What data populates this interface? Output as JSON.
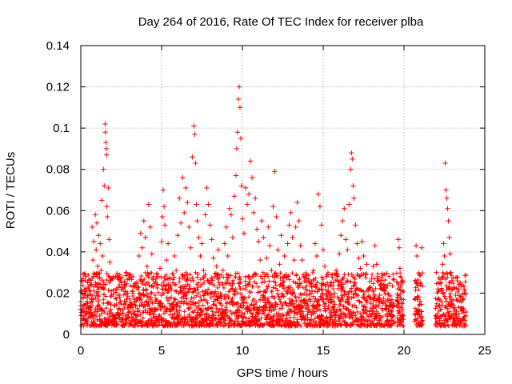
{
  "chart_data": {
    "type": "scatter",
    "title": "Day 264 of 2016, Rate Of TEC Index for receiver plba",
    "xlabel": "GPS time / hours",
    "ylabel": "ROTI / TECUs",
    "xlim": [
      0,
      25
    ],
    "ylim": [
      0,
      0.14
    ],
    "grid": true,
    "marker": "+",
    "series_color": "#ff0000",
    "x_ticks": [
      {
        "value": 0,
        "label": "0"
      },
      {
        "value": 5,
        "label": "5"
      },
      {
        "value": 10,
        "label": "10"
      },
      {
        "value": 15,
        "label": "15"
      },
      {
        "value": 20,
        "label": "20"
      },
      {
        "value": 25,
        "label": "25"
      }
    ],
    "y_ticks": [
      {
        "value": 0,
        "label": "0"
      },
      {
        "value": 0.02,
        "label": "0.02"
      },
      {
        "value": 0.04,
        "label": "0.04"
      },
      {
        "value": 0.06,
        "label": "0.06"
      },
      {
        "value": 0.08,
        "label": "0.08"
      },
      {
        "value": 0.1,
        "label": "0.1"
      },
      {
        "value": 0.12,
        "label": "0.12"
      },
      {
        "value": 0.14,
        "label": "0.14"
      }
    ],
    "series": [
      {
        "name": "ROTI",
        "points": [
          [
            0.0,
            0.012
          ],
          [
            0.05,
            0.026
          ],
          [
            0.1,
            0.009
          ],
          [
            0.15,
            0.018
          ],
          [
            0.2,
            0.014
          ],
          [
            0.25,
            0.021
          ],
          [
            0.3,
            0.028
          ],
          [
            0.35,
            0.011
          ],
          [
            0.4,
            0.016
          ],
          [
            0.45,
            0.008
          ],
          [
            0.5,
            0.019
          ],
          [
            0.55,
            0.013
          ],
          [
            0.6,
            0.024
          ],
          [
            0.65,
            0.017
          ],
          [
            0.7,
            0.052
          ],
          [
            0.75,
            0.036
          ],
          [
            0.8,
            0.045
          ],
          [
            0.85,
            0.029
          ],
          [
            0.9,
            0.058
          ],
          [
            0.95,
            0.041
          ],
          [
            1.0,
            0.054
          ],
          [
            1.05,
            0.033
          ],
          [
            1.1,
            0.048
          ],
          [
            1.15,
            0.027
          ],
          [
            1.2,
            0.044
          ],
          [
            1.25,
            0.031
          ],
          [
            1.3,
            0.065
          ],
          [
            1.35,
            0.038
          ],
          [
            1.4,
            0.08
          ],
          [
            1.45,
            0.072
          ],
          [
            1.5,
            0.102
          ],
          [
            1.52,
            0.098
          ],
          [
            1.55,
            0.093
          ],
          [
            1.58,
            0.09
          ],
          [
            1.6,
            0.087
          ],
          [
            1.62,
            0.062
          ],
          [
            1.65,
            0.057
          ],
          [
            1.7,
            0.071
          ],
          [
            1.75,
            0.046
          ],
          [
            1.8,
            0.035
          ],
          [
            1.85,
            0.026
          ],
          [
            1.9,
            0.019
          ],
          [
            2.0,
            0.028
          ],
          [
            2.1,
            0.014
          ],
          [
            2.2,
            0.022
          ],
          [
            2.3,
            0.01
          ],
          [
            2.4,
            0.018
          ],
          [
            2.5,
            0.025
          ],
          [
            2.6,
            0.012
          ],
          [
            2.7,
            0.016
          ],
          [
            2.8,
            0.03
          ],
          [
            2.9,
            0.02
          ],
          [
            3.0,
            0.027
          ],
          [
            3.1,
            0.013
          ],
          [
            3.2,
            0.021
          ],
          [
            3.3,
            0.017
          ],
          [
            3.4,
            0.024
          ],
          [
            3.5,
            0.011
          ],
          [
            3.6,
            0.038
          ],
          [
            3.7,
            0.049
          ],
          [
            3.8,
            0.042
          ],
          [
            3.9,
            0.055
          ],
          [
            4.0,
            0.047
          ],
          [
            4.1,
            0.033
          ],
          [
            4.2,
            0.063
          ],
          [
            4.3,
            0.052
          ],
          [
            4.4,
            0.039
          ],
          [
            4.5,
            0.028
          ],
          [
            4.6,
            0.019
          ],
          [
            4.7,
            0.024
          ],
          [
            4.8,
            0.015
          ],
          [
            4.9,
            0.032
          ],
          [
            5.0,
            0.045
          ],
          [
            5.05,
            0.057
          ],
          [
            5.1,
            0.07
          ],
          [
            5.15,
            0.062
          ],
          [
            5.2,
            0.053
          ],
          [
            5.3,
            0.036
          ],
          [
            5.4,
            0.044
          ],
          [
            5.5,
            0.027
          ],
          [
            5.6,
            0.018
          ],
          [
            5.7,
            0.025
          ],
          [
            5.8,
            0.038
          ],
          [
            5.9,
            0.031
          ],
          [
            6.0,
            0.048
          ],
          [
            6.1,
            0.066
          ],
          [
            6.2,
            0.054
          ],
          [
            6.3,
            0.076
          ],
          [
            6.4,
            0.059
          ],
          [
            6.5,
            0.071
          ],
          [
            6.6,
            0.064
          ],
          [
            6.7,
            0.052
          ],
          [
            6.8,
            0.042
          ],
          [
            6.9,
            0.086
          ],
          [
            7.0,
            0.101
          ],
          [
            7.05,
            0.097
          ],
          [
            7.1,
            0.083
          ],
          [
            7.15,
            0.063
          ],
          [
            7.2,
            0.055
          ],
          [
            7.3,
            0.047
          ],
          [
            7.4,
            0.038
          ],
          [
            7.5,
            0.044
          ],
          [
            7.6,
            0.031
          ],
          [
            7.7,
            0.058
          ],
          [
            7.8,
            0.071
          ],
          [
            7.9,
            0.063
          ],
          [
            8.0,
            0.053
          ],
          [
            8.1,
            0.046
          ],
          [
            8.2,
            0.037
          ],
          [
            8.3,
            0.028
          ],
          [
            8.4,
            0.033
          ],
          [
            8.5,
            0.041
          ],
          [
            8.6,
            0.024
          ],
          [
            8.7,
            0.019
          ],
          [
            8.8,
            0.031
          ],
          [
            8.9,
            0.044
          ],
          [
            9.0,
            0.052
          ],
          [
            9.1,
            0.038
          ],
          [
            9.2,
            0.061
          ],
          [
            9.3,
            0.058
          ],
          [
            9.4,
            0.047
          ],
          [
            9.5,
            0.067
          ],
          [
            9.6,
            0.077
          ],
          [
            9.65,
            0.09
          ],
          [
            9.7,
            0.098
          ],
          [
            9.75,
            0.114
          ],
          [
            9.8,
            0.12
          ],
          [
            9.85,
            0.11
          ],
          [
            9.9,
            0.095
          ],
          [
            9.95,
            0.072
          ],
          [
            10.0,
            0.056
          ],
          [
            10.1,
            0.049
          ],
          [
            10.2,
            0.071
          ],
          [
            10.3,
            0.063
          ],
          [
            10.4,
            0.068
          ],
          [
            10.5,
            0.084
          ],
          [
            10.6,
            0.076
          ],
          [
            10.7,
            0.059
          ],
          [
            10.8,
            0.066
          ],
          [
            10.9,
            0.051
          ],
          [
            11.0,
            0.045
          ],
          [
            11.1,
            0.036
          ],
          [
            11.2,
            0.055
          ],
          [
            11.3,
            0.047
          ],
          [
            11.4,
            0.029
          ],
          [
            11.5,
            0.037
          ],
          [
            11.6,
            0.052
          ],
          [
            11.7,
            0.043
          ],
          [
            11.8,
            0.031
          ],
          [
            11.9,
            0.062
          ],
          [
            12.0,
            0.079
          ],
          [
            12.1,
            0.057
          ],
          [
            12.2,
            0.041
          ],
          [
            12.3,
            0.034
          ],
          [
            12.4,
            0.048
          ],
          [
            12.5,
            0.026
          ],
          [
            12.6,
            0.038
          ],
          [
            12.7,
            0.029
          ],
          [
            12.8,
            0.044
          ],
          [
            12.9,
            0.053
          ],
          [
            13.0,
            0.059
          ],
          [
            13.1,
            0.047
          ],
          [
            13.2,
            0.036
          ],
          [
            13.3,
            0.052
          ],
          [
            13.4,
            0.064
          ],
          [
            13.5,
            0.055
          ],
          [
            13.6,
            0.043
          ],
          [
            13.7,
            0.036
          ],
          [
            13.8,
            0.028
          ],
          [
            13.9,
            0.022
          ],
          [
            14.0,
            0.019
          ],
          [
            14.1,
            0.026
          ],
          [
            14.2,
            0.017
          ],
          [
            14.3,
            0.023
          ],
          [
            14.4,
            0.031
          ],
          [
            14.5,
            0.044
          ],
          [
            14.6,
            0.038
          ],
          [
            14.7,
            0.068
          ],
          [
            14.8,
            0.062
          ],
          [
            14.9,
            0.053
          ],
          [
            15.0,
            0.041
          ],
          [
            15.1,
            0.033
          ],
          [
            15.2,
            0.028
          ],
          [
            15.3,
            0.021
          ],
          [
            15.4,
            0.017
          ],
          [
            15.5,
            0.025
          ],
          [
            15.6,
            0.013
          ],
          [
            15.7,
            0.02
          ],
          [
            15.8,
            0.031
          ],
          [
            15.9,
            0.026
          ],
          [
            16.0,
            0.039
          ],
          [
            16.1,
            0.048
          ],
          [
            16.2,
            0.055
          ],
          [
            16.3,
            0.061
          ],
          [
            16.4,
            0.046
          ],
          [
            16.5,
            0.041
          ],
          [
            16.6,
            0.063
          ],
          [
            16.7,
            0.08
          ],
          [
            16.75,
            0.088
          ],
          [
            16.8,
            0.085
          ],
          [
            16.85,
            0.072
          ],
          [
            16.9,
            0.066
          ],
          [
            17.0,
            0.053
          ],
          [
            17.1,
            0.044
          ],
          [
            17.2,
            0.037
          ],
          [
            17.3,
            0.032
          ],
          [
            17.4,
            0.045
          ],
          [
            17.5,
            0.038
          ],
          [
            17.6,
            0.029
          ],
          [
            17.7,
            0.034
          ],
          [
            17.8,
            0.022
          ],
          [
            17.9,
            0.018
          ],
          [
            18.0,
            0.027
          ],
          [
            18.1,
            0.033
          ],
          [
            18.2,
            0.043
          ],
          [
            18.3,
            0.034
          ],
          [
            18.4,
            0.026
          ],
          [
            18.5,
            0.019
          ],
          [
            18.6,
            0.024
          ],
          [
            18.7,
            0.015
          ],
          [
            18.8,
            0.021
          ],
          [
            18.9,
            0.012
          ],
          [
            19.0,
            0.017
          ],
          [
            19.1,
            0.01
          ],
          [
            19.2,
            0.014
          ],
          [
            19.3,
            0.009
          ],
          [
            19.6,
            0.018
          ],
          [
            19.65,
            0.046
          ],
          [
            19.7,
            0.042
          ],
          [
            19.75,
            0.032
          ],
          [
            19.8,
            0.024
          ],
          [
            19.85,
            0.015
          ],
          [
            19.9,
            0.009
          ],
          [
            19.95,
            0.021
          ],
          [
            20.7,
            0.026
          ],
          [
            20.75,
            0.043
          ],
          [
            20.8,
            0.038
          ],
          [
            20.85,
            0.018
          ],
          [
            20.9,
            0.011
          ],
          [
            20.95,
            0.029
          ],
          [
            21.0,
            0.016
          ],
          [
            21.05,
            0.008
          ],
          [
            21.1,
            0.042
          ],
          [
            22.0,
            0.03
          ],
          [
            22.1,
            0.022
          ],
          [
            22.2,
            0.014
          ],
          [
            22.3,
            0.025
          ],
          [
            22.4,
            0.034
          ],
          [
            22.45,
            0.044
          ],
          [
            22.5,
            0.038
          ],
          [
            22.55,
            0.083
          ],
          [
            22.6,
            0.07
          ],
          [
            22.65,
            0.066
          ],
          [
            22.7,
            0.061
          ],
          [
            22.75,
            0.055
          ],
          [
            22.8,
            0.047
          ],
          [
            22.85,
            0.039
          ],
          [
            22.9,
            0.03
          ],
          [
            23.0,
            0.022
          ],
          [
            23.1,
            0.013
          ],
          [
            23.2,
            0.019
          ],
          [
            23.3,
            0.026
          ],
          [
            23.4,
            0.01
          ],
          [
            23.5,
            0.018
          ],
          [
            23.6,
            0.024
          ],
          [
            23.7,
            0.012
          ],
          [
            23.8,
            0.02
          ]
        ]
      }
    ]
  }
}
